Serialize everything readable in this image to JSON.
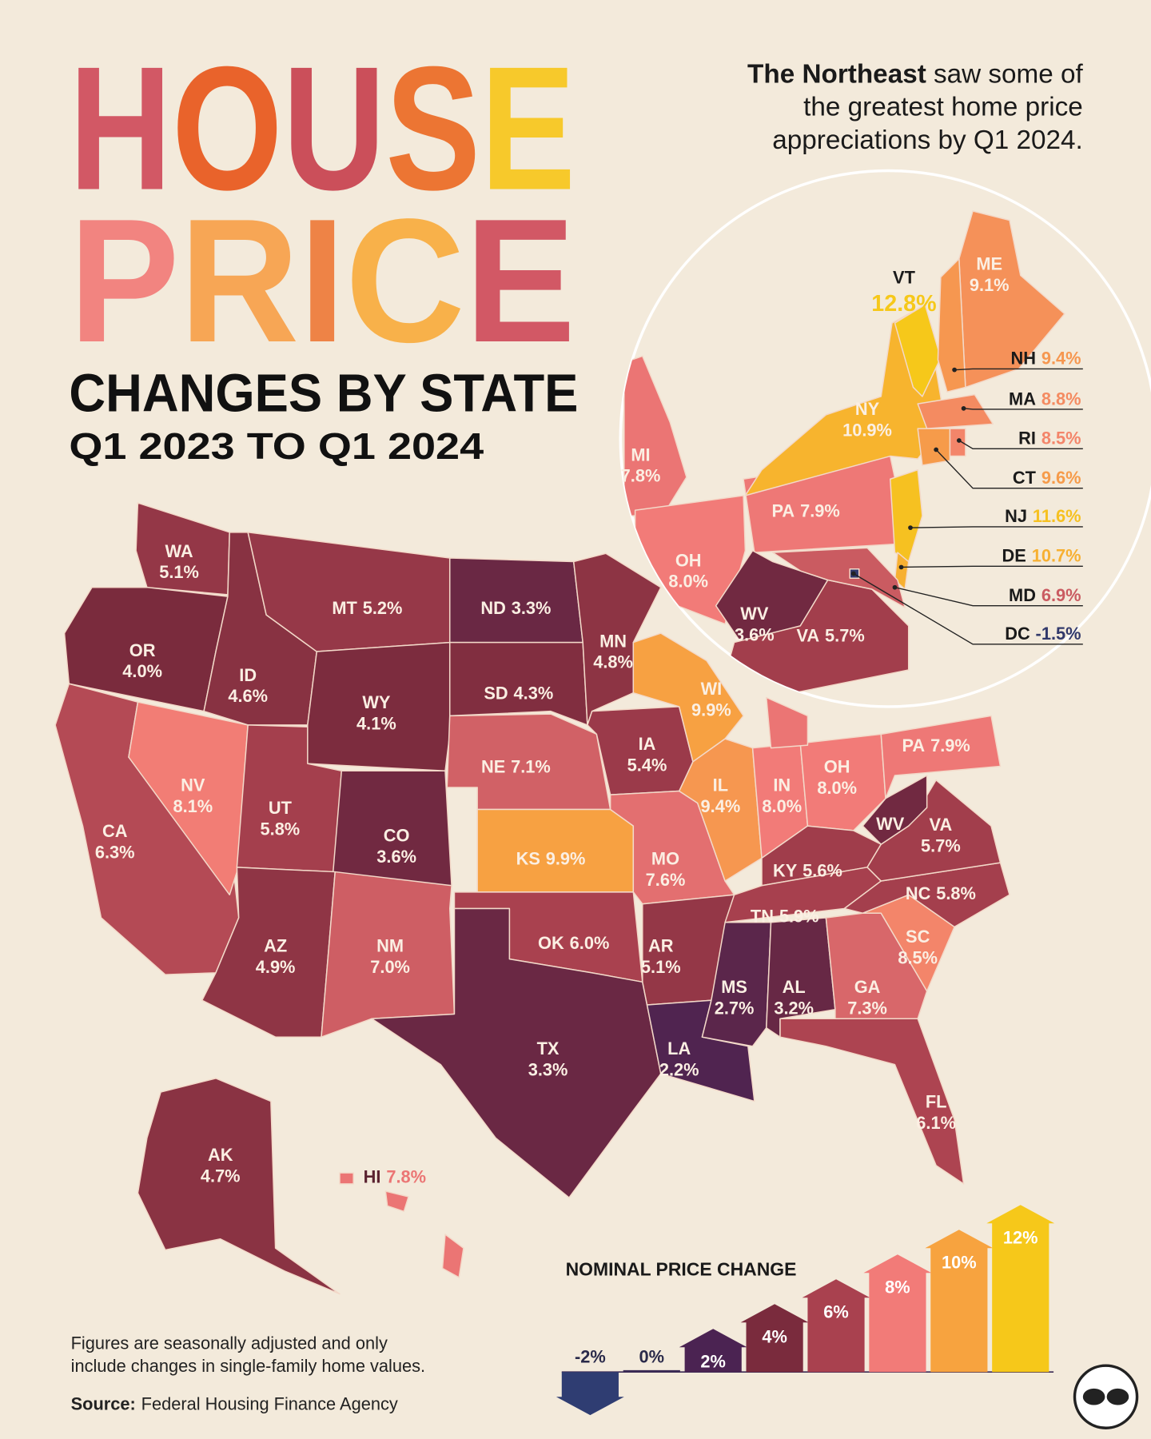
{
  "header": {
    "title_line1": "HOUSE",
    "title_line2": "PRICE",
    "subtitle": "CHANGES BY STATE",
    "period": "Q1 2023 TO Q1 2024"
  },
  "annotation": {
    "emphasis": "The Northeast",
    "lines": [
      "saw some of",
      "the greatest home price",
      "appreciations by Q1 2024."
    ]
  },
  "states": [
    {
      "abbr": "WA",
      "value": 5.1,
      "label": "5.1%"
    },
    {
      "abbr": "OR",
      "value": 4.0,
      "label": "4.0%"
    },
    {
      "abbr": "CA",
      "value": 6.3,
      "label": "6.3%"
    },
    {
      "abbr": "NV",
      "value": 8.1,
      "label": "8.1%"
    },
    {
      "abbr": "ID",
      "value": 4.6,
      "label": "4.6%"
    },
    {
      "abbr": "MT",
      "value": 5.2,
      "label": "5.2%"
    },
    {
      "abbr": "WY",
      "value": 4.1,
      "label": "4.1%"
    },
    {
      "abbr": "UT",
      "value": 5.8,
      "label": "5.8%"
    },
    {
      "abbr": "CO",
      "value": 3.6,
      "label": "3.6%"
    },
    {
      "abbr": "AZ",
      "value": 4.9,
      "label": "4.9%"
    },
    {
      "abbr": "NM",
      "value": 7.0,
      "label": "7.0%"
    },
    {
      "abbr": "ND",
      "value": 3.3,
      "label": "3.3%"
    },
    {
      "abbr": "SD",
      "value": 4.3,
      "label": "4.3%"
    },
    {
      "abbr": "NE",
      "value": 7.1,
      "label": "7.1%"
    },
    {
      "abbr": "KS",
      "value": 9.9,
      "label": "9.9%"
    },
    {
      "abbr": "OK",
      "value": 6.0,
      "label": "6.0%"
    },
    {
      "abbr": "TX",
      "value": 3.3,
      "label": "3.3%"
    },
    {
      "abbr": "MN",
      "value": 4.8,
      "label": "4.8%"
    },
    {
      "abbr": "IA",
      "value": 5.4,
      "label": "5.4%"
    },
    {
      "abbr": "MO",
      "value": 7.6,
      "label": "7.6%"
    },
    {
      "abbr": "AR",
      "value": 5.1,
      "label": "5.1%"
    },
    {
      "abbr": "LA",
      "value": 2.2,
      "label": "2.2%"
    },
    {
      "abbr": "WI",
      "value": 9.9,
      "label": "9.9%"
    },
    {
      "abbr": "IL",
      "value": 9.4,
      "label": "9.4%"
    },
    {
      "abbr": "IN",
      "value": 8.0,
      "label": "8.0%"
    },
    {
      "abbr": "OH",
      "value": 8.0,
      "label": "8.0%"
    },
    {
      "abbr": "KY",
      "value": 5.6,
      "label": "5.6%"
    },
    {
      "abbr": "TN",
      "value": 5.9,
      "label": "5.9%"
    },
    {
      "abbr": "MS",
      "value": 2.7,
      "label": "2.7%"
    },
    {
      "abbr": "AL",
      "value": 3.2,
      "label": "3.2%"
    },
    {
      "abbr": "GA",
      "value": 7.3,
      "label": "7.3%"
    },
    {
      "abbr": "FL",
      "value": 6.1,
      "label": "6.1%"
    },
    {
      "abbr": "SC",
      "value": 8.5,
      "label": "8.5%"
    },
    {
      "abbr": "NC",
      "value": 5.8,
      "label": "5.8%"
    },
    {
      "abbr": "VA",
      "value": 5.7,
      "label": "5.7%"
    },
    {
      "abbr": "WV",
      "value": 3.6
    },
    {
      "abbr": "PA",
      "value": 7.9,
      "label": "7.9%"
    },
    {
      "value": 7.8
    },
    {
      "abbr": "AK",
      "value": 4.7,
      "label": "4.7%"
    },
    {
      "abbr": "HI",
      "value": 7.8,
      "label": "7.8%"
    }
  ],
  "zoom_states": [
    {
      "abbr": "MI",
      "value": 7.8,
      "label": "7.8%"
    },
    {
      "abbr": "OH",
      "value": 8.0,
      "label": "8.0%"
    },
    {
      "abbr": "PA",
      "value": 7.9,
      "label": "7.9%"
    },
    {
      "abbr": "NY",
      "value": 10.9,
      "label": "10.9%"
    },
    {
      "abbr": "VT",
      "value": 12.8,
      "label": "12.8%"
    },
    {
      "abbr": "ME",
      "value": 9.1,
      "label": "9.1%"
    },
    {
      "abbr": "WV",
      "value": 3.6,
      "label": "3.6%"
    },
    {
      "abbr": "VA",
      "value": 5.7,
      "label": "5.7%"
    },
    {
      "abbr": "NH",
      "value": 9.4,
      "label": "9.4%"
    },
    {
      "abbr": "MA",
      "value": 8.8,
      "label": "8.8%"
    },
    {
      "abbr": "RI",
      "value": 8.5,
      "label": "8.5%"
    },
    {
      "abbr": "CT",
      "value": 9.6,
      "label": "9.6%"
    },
    {
      "abbr": "NJ",
      "value": 11.6,
      "label": "11.6%"
    },
    {
      "abbr": "DE",
      "value": 10.7,
      "label": "10.7%"
    },
    {
      "abbr": "MD",
      "value": 6.9,
      "label": "6.9%"
    },
    {
      "abbr": "DC",
      "value": -1.5,
      "label": "-1.5%"
    }
  ],
  "legend": {
    "title": "NOMINAL PRICE CHANGE",
    "stops": [
      {
        "value": -2,
        "label": "-2%",
        "color": "#2f3d72"
      },
      {
        "value": 0,
        "label": "0%",
        "color": "#3b2b55"
      },
      {
        "value": 2,
        "label": "2%",
        "color": "#4b2352"
      },
      {
        "value": 4,
        "label": "4%",
        "color": "#7a2b3d"
      },
      {
        "value": 6,
        "label": "6%",
        "color": "#a9414f"
      },
      {
        "value": 8,
        "label": "8%",
        "color": "#f27b78"
      },
      {
        "value": 10,
        "label": "10%",
        "color": "#f7a33f"
      },
      {
        "value": 12,
        "label": "12%",
        "color": "#f6c81a"
      }
    ]
  },
  "footnote": [
    "Figures are seasonally adjusted and only",
    "include changes in single-family home values."
  ],
  "source": {
    "label": "Source:",
    "text": "Federal Housing Finance Agency"
  }
}
